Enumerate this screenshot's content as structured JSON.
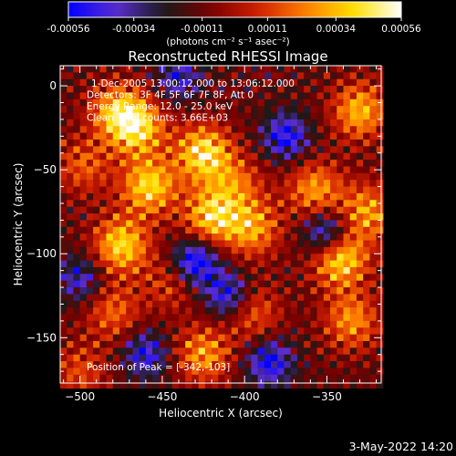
{
  "chart_data": {
    "type": "heatmap",
    "title": "Reconstructed RHESSI Image",
    "xlabel": "Heliocentric X (arcsec)",
    "ylabel": "Heliocentric Y (arcsec)",
    "xlim": [
      -512,
      -317
    ],
    "ylim": [
      -177,
      12
    ],
    "x_ticks": [
      -500,
      -450,
      -400,
      -350
    ],
    "y_ticks": [
      0,
      -50,
      -100,
      -150
    ],
    "colorbar": {
      "min": -0.00056,
      "max": 0.00056,
      "ticks": [
        "-0.00056",
        "-0.00034",
        "-0.00011",
        "0.00011",
        "0.00034",
        "0.00056"
      ],
      "unit_label": "(photons cm⁻² s⁻¹ asec⁻²)",
      "colors": [
        "#0000ff",
        "#5a2dd0",
        "#1a1a1a",
        "#7a0000",
        "#d02000",
        "#ff8000",
        "#ffe000",
        "#ffffff"
      ]
    },
    "annotations": [
      "1-Dec-2005 13:00:12.000 to 13:06:12.000",
      "Detectors: 3F 4F 5F 6F 7F 8F, Att 0",
      "Energy Range: 12.0 - 25.0 keV",
      "Clean    Total counts: 3.66E+03"
    ],
    "peak_label": "Position of Peak = [-342,-103]",
    "peak": [
      -342,
      -103
    ],
    "hotspots": [
      {
        "x": -478,
        "y": -15,
        "v": 0.0004
      },
      {
        "x": -465,
        "y": -25,
        "v": 0.0005
      },
      {
        "x": -458,
        "y": -60,
        "v": 0.00052
      },
      {
        "x": -475,
        "y": -95,
        "v": 0.00052
      },
      {
        "x": -498,
        "y": -48,
        "v": 0.00028
      },
      {
        "x": -425,
        "y": -40,
        "v": 0.00056
      },
      {
        "x": -420,
        "y": -78,
        "v": 0.0005
      },
      {
        "x": -395,
        "y": -85,
        "v": 0.0004
      },
      {
        "x": -405,
        "y": -58,
        "v": 0.00028
      },
      {
        "x": -357,
        "y": -62,
        "v": 0.0004
      },
      {
        "x": -330,
        "y": -15,
        "v": 0.00045
      },
      {
        "x": -342,
        "y": -103,
        "v": 0.00056
      },
      {
        "x": -325,
        "y": -75,
        "v": 0.0004
      },
      {
        "x": -335,
        "y": -140,
        "v": 0.00038
      },
      {
        "x": -425,
        "y": -160,
        "v": 0.0004
      },
      {
        "x": -480,
        "y": -135,
        "v": 0.0003
      },
      {
        "x": -395,
        "y": -135,
        "v": 0.0003
      },
      {
        "x": -500,
        "y": -170,
        "v": 0.00025
      },
      {
        "x": -445,
        "y": -118,
        "v": 0.00022
      }
    ],
    "coldspots": [
      {
        "x": -430,
        "y": -105,
        "v": -0.0005
      },
      {
        "x": -375,
        "y": -30,
        "v": -0.0004
      },
      {
        "x": -350,
        "y": -88,
        "v": -0.00045
      },
      {
        "x": -410,
        "y": -125,
        "v": -0.0004
      },
      {
        "x": -460,
        "y": -160,
        "v": -0.00035
      },
      {
        "x": -385,
        "y": -165,
        "v": -0.0004
      },
      {
        "x": -500,
        "y": -115,
        "v": -0.0003
      },
      {
        "x": -440,
        "y": 5,
        "v": -0.0003
      }
    ]
  },
  "footer": {
    "date": "3-May-2022 14:20"
  }
}
